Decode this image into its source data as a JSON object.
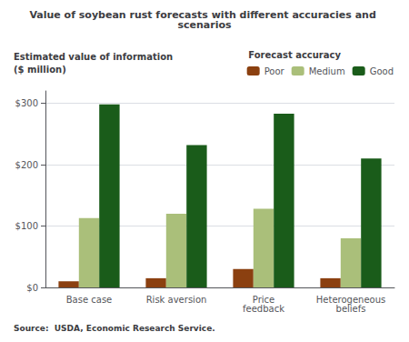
{
  "chart_data": {
    "type": "bar",
    "title": "Value of soybean rust forecasts with different accuracies and scenarios",
    "ylabel": "Estimated value of information\n($ million)",
    "legend_title": "Forecast accuracy",
    "annotations": [
      "Source:  USDA, Economic Research Service."
    ],
    "categories": [
      "Base case",
      "Risk aversion",
      "Price\nfeedback",
      "Heterogeneous\nbeliefs"
    ],
    "series": [
      {
        "name": "Poor",
        "color": "#8B4010",
        "values": [
          10,
          15,
          30,
          15
        ]
      },
      {
        "name": "Medium",
        "color": "#AABF7A",
        "values": [
          113,
          120,
          128,
          80
        ]
      },
      {
        "name": "Good",
        "color": "#1A5C1A",
        "values": [
          298,
          232,
          283,
          210
        ]
      }
    ],
    "ylim": [
      0,
      320
    ],
    "yticks": [
      {
        "value": 0,
        "label": "$0"
      },
      {
        "value": 100,
        "label": "$100"
      },
      {
        "value": 200,
        "label": "$200"
      },
      {
        "value": 300,
        "label": "$300"
      }
    ],
    "grid": true,
    "legend": "upper right"
  }
}
